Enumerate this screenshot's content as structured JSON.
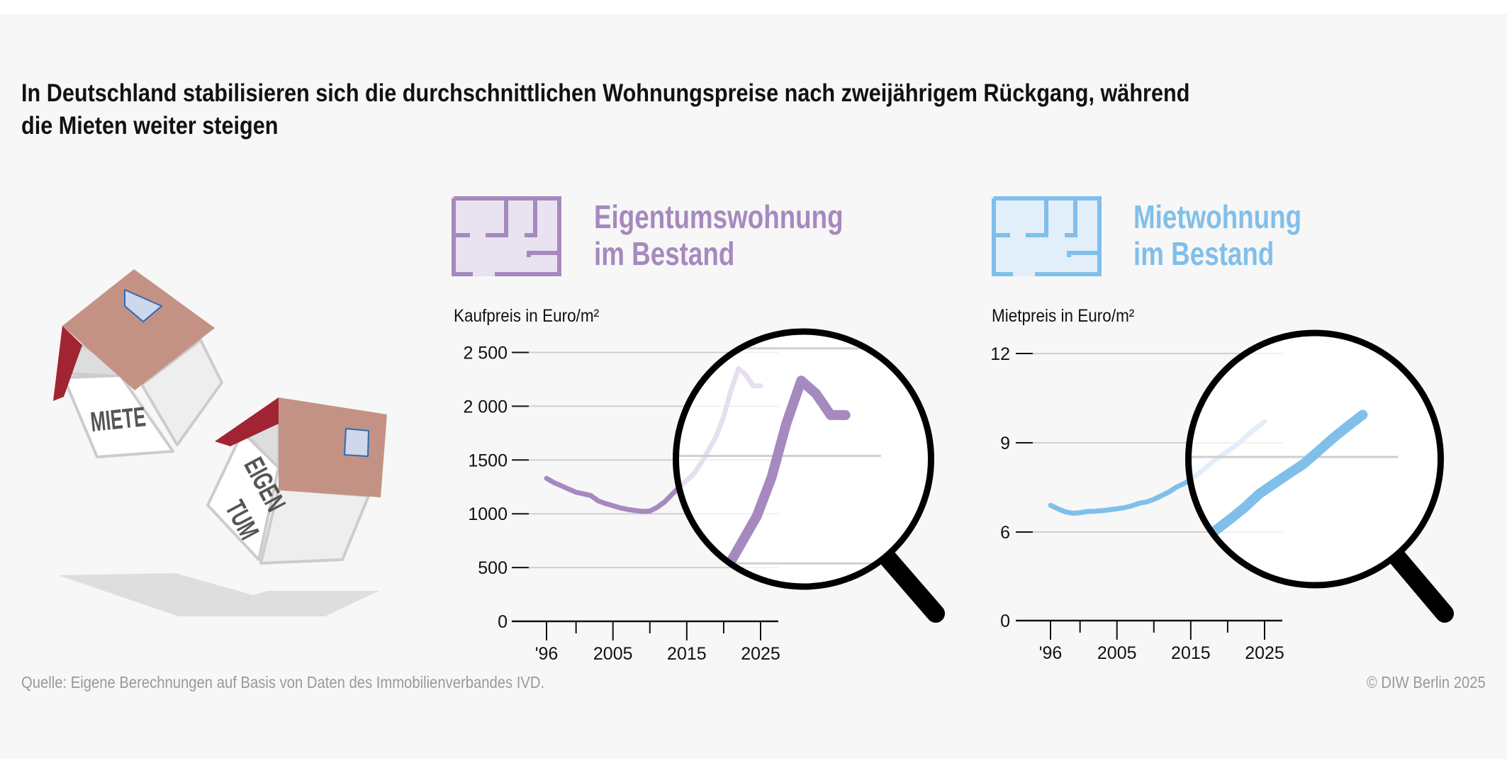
{
  "title": {
    "line1": "In Deutschland stabilisieren sich die durchschnittlichen Wohnungspreise nach zweijährigem Rückgang, während",
    "line2": "die Mieten weiter steigen"
  },
  "illustration": {
    "house_rent_label": "MIETE",
    "house_own_label_1": "EIGEN",
    "house_own_label_2": "TUM"
  },
  "colors": {
    "purchase": "#a689bf",
    "purchase_faded": "#e6dff0",
    "rent": "#80bfea",
    "rent_faded": "#e2eefa",
    "roof": "#c49284",
    "gable": "#a02432"
  },
  "chart_data": [
    {
      "type": "line",
      "header_line1": "Eigentumswohnung",
      "header_line2": "im Bestand",
      "icon": "floor-plan-icon",
      "ylabel": "Kaufpreis in Euro/m²",
      "ylim": [
        0,
        2500
      ],
      "yticks": [
        {
          "value": 0,
          "label": "0"
        },
        {
          "value": 500,
          "label": "500"
        },
        {
          "value": 1000,
          "label": "1000"
        },
        {
          "value": 1500,
          "label": "1500"
        },
        {
          "value": 2000,
          "label": "2 000"
        },
        {
          "value": 2500,
          "label": "2 500"
        }
      ],
      "xlim": [
        1996,
        2025
      ],
      "xticks": [
        1996,
        2000,
        2005,
        2010,
        2015,
        2020,
        2025
      ],
      "xticklabels": [
        {
          "value": 1996,
          "label": "'96"
        },
        {
          "value": 2005,
          "label": "2005"
        },
        {
          "value": 2015,
          "label": "2015"
        },
        {
          "value": 2025,
          "label": "2025"
        }
      ],
      "grid": true,
      "magnifier": true,
      "x": [
        1996,
        1997,
        1998,
        1999,
        2000,
        2001,
        2002,
        2003,
        2004,
        2005,
        2006,
        2007,
        2008,
        2009,
        2010,
        2011,
        2012,
        2013,
        2014,
        2015,
        2016,
        2017,
        2018,
        2019,
        2020,
        2021,
        2022,
        2023,
        2024,
        2025
      ],
      "values": [
        1330,
        1290,
        1260,
        1230,
        1200,
        1185,
        1170,
        1120,
        1095,
        1075,
        1055,
        1040,
        1030,
        1022,
        1025,
        1060,
        1110,
        1180,
        1250,
        1310,
        1375,
        1480,
        1600,
        1720,
        1900,
        2150,
        2350,
        2290,
        2190,
        2190
      ]
    },
    {
      "type": "line",
      "header_line1": "Mietwohnung",
      "header_line2": "im Bestand",
      "icon": "floor-plan-icon",
      "ylabel": "Mietpreis in Euro/m²",
      "ylim": [
        0,
        12
      ],
      "axis_break": "0–6 compressed",
      "yticks": [
        {
          "value": 0,
          "label": "0"
        },
        {
          "value": 6,
          "label": "6"
        },
        {
          "value": 9,
          "label": "9"
        },
        {
          "value": 12,
          "label": "12"
        }
      ],
      "xlim": [
        1996,
        2025
      ],
      "xticks": [
        1996,
        2000,
        2005,
        2010,
        2015,
        2020,
        2025
      ],
      "xticklabels": [
        {
          "value": 1996,
          "label": "'96"
        },
        {
          "value": 2005,
          "label": "2005"
        },
        {
          "value": 2015,
          "label": "2015"
        },
        {
          "value": 2025,
          "label": "2025"
        }
      ],
      "grid": true,
      "magnifier": true,
      "x": [
        1996,
        1997,
        1998,
        1999,
        2000,
        2001,
        2002,
        2003,
        2004,
        2005,
        2006,
        2007,
        2008,
        2009,
        2010,
        2011,
        2012,
        2013,
        2014,
        2015,
        2016,
        2017,
        2018,
        2019,
        2020,
        2021,
        2022,
        2023,
        2024,
        2025
      ],
      "values": [
        6.9,
        6.78,
        6.68,
        6.63,
        6.65,
        6.69,
        6.7,
        6.72,
        6.75,
        6.78,
        6.82,
        6.88,
        6.97,
        7.01,
        7.1,
        7.22,
        7.34,
        7.5,
        7.62,
        7.76,
        7.95,
        8.15,
        8.38,
        8.55,
        8.72,
        8.88,
        9.1,
        9.32,
        9.52,
        9.71
      ]
    }
  ],
  "footer": {
    "source": "Quelle: Eigene Berechnungen auf Basis von Daten des Immobilienverbandes IVD.",
    "copyright": "© DIW Berlin 2025"
  }
}
